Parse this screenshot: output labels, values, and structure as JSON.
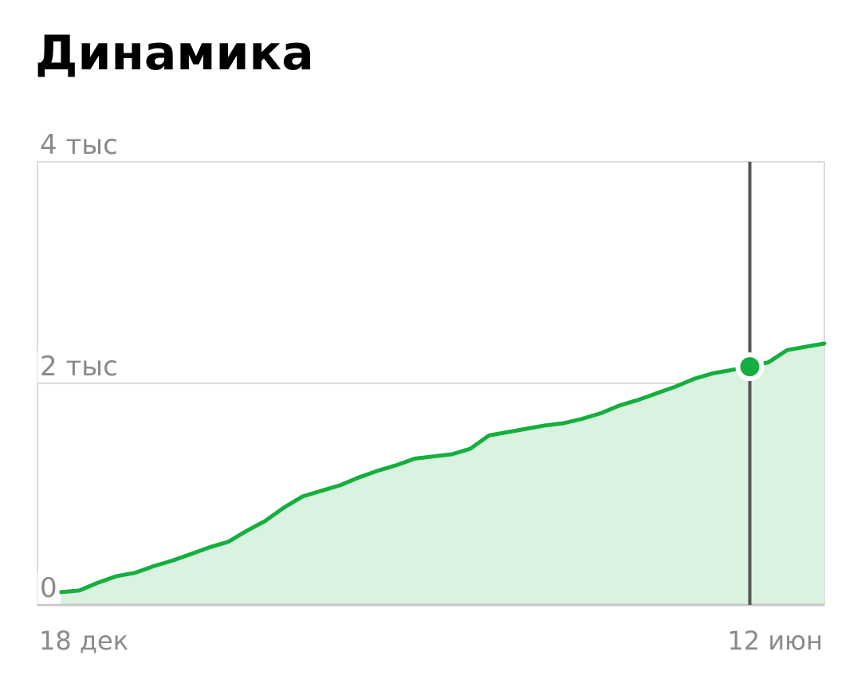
{
  "chart_data": {
    "type": "area",
    "title": "Динамика",
    "categories": [
      "18 дек",
      null,
      null,
      null,
      null,
      null,
      null,
      null,
      null,
      null,
      null,
      null,
      null,
      null,
      null,
      null,
      null,
      null,
      null,
      null,
      null,
      null,
      null,
      null,
      null,
      null,
      null,
      null,
      null,
      null,
      null,
      null,
      null,
      null,
      null,
      null,
      null,
      null,
      null,
      null,
      null,
      "12 июн"
    ],
    "series": [
      {
        "color": "#16ae3f",
        "values": [
          115,
          130,
          200,
          260,
          290,
          350,
          400,
          460,
          520,
          570,
          670,
          760,
          880,
          980,
          1030,
          1080,
          1150,
          1210,
          1260,
          1320,
          1340,
          1360,
          1410,
          1530,
          1560,
          1590,
          1620,
          1640,
          1680,
          1730,
          1800,
          1850,
          1910,
          1970,
          2040,
          2090,
          2120,
          2150,
          2190,
          2300,
          2330,
          2360
        ]
      }
    ],
    "ylim": [
      0,
      4000
    ],
    "yticks": [
      {
        "value": 0,
        "label": "0"
      },
      {
        "value": 2000,
        "label": "2 тыс"
      },
      {
        "value": 4000,
        "label": "4 тыс"
      }
    ],
    "grid": true,
    "fill_color": "#d9f3e0",
    "highlight_index": 37
  }
}
